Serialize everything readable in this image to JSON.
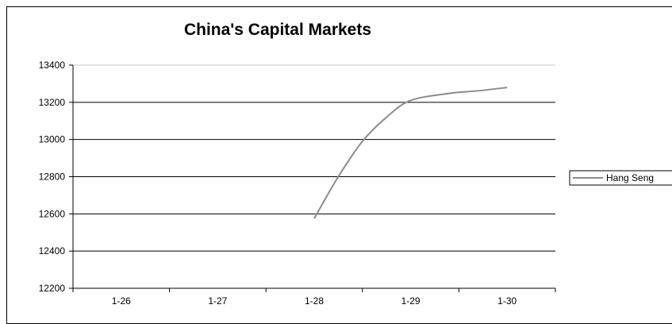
{
  "chart_data": {
    "type": "line",
    "title": "China's Capital Markets",
    "xlabel": "",
    "ylabel": "",
    "categories": [
      "1-26",
      "1-27",
      "1-28",
      "1-29",
      "1-30"
    ],
    "ylim": [
      12200,
      13400
    ],
    "yticks": [
      12200,
      12400,
      12600,
      12800,
      13000,
      13200,
      13400
    ],
    "grid": true,
    "legend_position": "right",
    "series": [
      {
        "name": "Hang Seng",
        "color": "#8c8c8c",
        "points": [
          {
            "x": 2.0,
            "y": 12575
          },
          {
            "x": 2.25,
            "y": 12800
          },
          {
            "x": 2.5,
            "y": 12990
          },
          {
            "x": 2.75,
            "y": 13120
          },
          {
            "x": 3.0,
            "y": 13210
          },
          {
            "x": 3.4,
            "y": 13248
          },
          {
            "x": 3.7,
            "y": 13262
          },
          {
            "x": 4.0,
            "y": 13280
          }
        ]
      }
    ]
  }
}
